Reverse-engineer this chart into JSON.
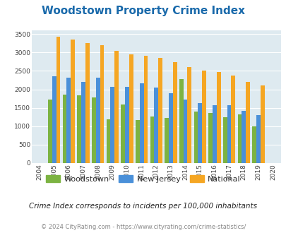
{
  "title": "Woodstown Property Crime Index",
  "years": [
    2004,
    2005,
    2006,
    2007,
    2008,
    2009,
    2010,
    2011,
    2012,
    2013,
    2014,
    2015,
    2016,
    2017,
    2018,
    2019,
    2020
  ],
  "woodstown": [
    0,
    1720,
    1850,
    1840,
    1780,
    1180,
    1590,
    1170,
    1260,
    1220,
    2280,
    1390,
    1350,
    1240,
    1320,
    1000,
    0
  ],
  "new_jersey": [
    0,
    2360,
    2310,
    2200,
    2320,
    2060,
    2070,
    2160,
    2050,
    1900,
    1720,
    1620,
    1560,
    1560,
    1410,
    1310,
    0
  ],
  "national": [
    0,
    3420,
    3340,
    3260,
    3200,
    3050,
    2950,
    2910,
    2860,
    2730,
    2600,
    2500,
    2470,
    2380,
    2200,
    2110,
    0
  ],
  "bar_colors": {
    "woodstown": "#7cb342",
    "new_jersey": "#4a90d9",
    "national": "#f5a623"
  },
  "ylim": [
    0,
    3600
  ],
  "yticks": [
    0,
    500,
    1000,
    1500,
    2000,
    2500,
    3000,
    3500
  ],
  "plot_bg": "#deeaf0",
  "footer_text": "© 2024 CityRating.com - https://www.cityrating.com/crime-statistics/",
  "subtitle": "Crime Index corresponds to incidents per 100,000 inhabitants",
  "title_color": "#1a6aab",
  "subtitle_color": "#222222",
  "footer_color": "#888888"
}
